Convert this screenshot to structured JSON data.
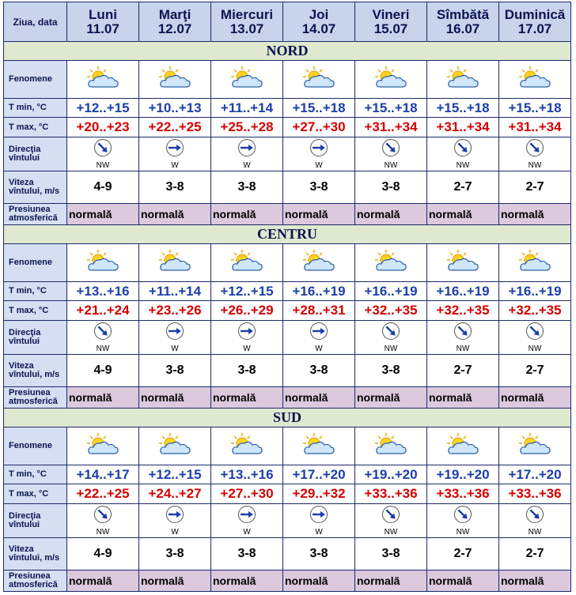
{
  "header": {
    "label": "Ziua, data",
    "days": [
      {
        "name": "Luni",
        "date": "11.07"
      },
      {
        "name": "Marţi",
        "date": "12.07"
      },
      {
        "name": "Miercuri",
        "date": "13.07"
      },
      {
        "name": "Joi",
        "date": "14.07"
      },
      {
        "name": "Vineri",
        "date": "15.07"
      },
      {
        "name": "Sîmbătă",
        "date": "16.07"
      },
      {
        "name": "Duminică",
        "date": "17.07"
      }
    ]
  },
  "row_labels": {
    "phenomena": "Fenomene",
    "tmin": "T min, °C",
    "tmax": "T max, °C",
    "wind_dir": "Direcţia vîntului",
    "wind_speed": "Viteza vîntului, m/s",
    "pressure": "Presiunea atmosferică"
  },
  "regions": [
    {
      "name": "NORD",
      "tmin": [
        "+12..+15",
        "+10..+13",
        "+11..+14",
        "+15..+18",
        "+15..+18",
        "+15..+18",
        "+15..+18"
      ],
      "tmax": [
        "+20..+23",
        "+22..+25",
        "+25..+28",
        "+27..+30",
        "+31..+34",
        "+31..+34",
        "+31..+34"
      ],
      "wind_dir": [
        "NW",
        "W",
        "W",
        "W",
        "NW",
        "NW",
        "NW"
      ],
      "wind_speed": [
        "4-9",
        "3-8",
        "3-8",
        "3-8",
        "3-8",
        "2-7",
        "2-7"
      ],
      "pressure": [
        "normală",
        "normală",
        "normală",
        "normală",
        "normală",
        "normală",
        "normală"
      ]
    },
    {
      "name": "CENTRU",
      "tmin": [
        "+13..+16",
        "+11..+14",
        "+12..+15",
        "+16..+19",
        "+16..+19",
        "+16..+19",
        "+16..+19"
      ],
      "tmax": [
        "+21..+24",
        "+23..+26",
        "+26..+29",
        "+28..+31",
        "+32..+35",
        "+32..+35",
        "+32..+35"
      ],
      "wind_dir": [
        "NW",
        "W",
        "W",
        "W",
        "NW",
        "NW",
        "NW"
      ],
      "wind_speed": [
        "4-9",
        "3-8",
        "3-8",
        "3-8",
        "3-8",
        "2-7",
        "2-7"
      ],
      "pressure": [
        "normală",
        "normală",
        "normală",
        "normală",
        "normală",
        "normală",
        "normală"
      ]
    },
    {
      "name": "SUD",
      "tmin": [
        "+14..+17",
        "+12..+15",
        "+13..+16",
        "+17..+20",
        "+19..+20",
        "+19..+20",
        "+17..+20"
      ],
      "tmax": [
        "+22..+25",
        "+24..+27",
        "+27..+30",
        "+29..+32",
        "+33..+36",
        "+33..+36",
        "+33..+36"
      ],
      "wind_dir": [
        "NW",
        "W",
        "W",
        "W",
        "NW",
        "NW",
        "NW"
      ],
      "wind_speed": [
        "4-9",
        "3-8",
        "3-8",
        "3-8",
        "3-8",
        "2-7",
        "2-7"
      ],
      "pressure": [
        "normală",
        "normală",
        "normală",
        "normală",
        "normală",
        "normală",
        "normală"
      ]
    }
  ]
}
